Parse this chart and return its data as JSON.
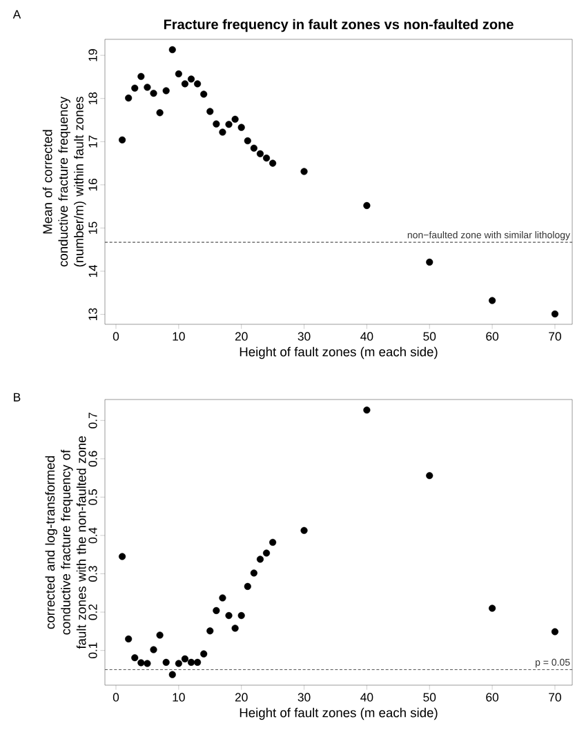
{
  "chart_data": [
    {
      "type": "scatter",
      "title": "Fracture frequency in fault zones vs non-faulted zone",
      "annotations": [
        "A"
      ],
      "xlabel": "Height of fault zones (m each side)",
      "ylabel": "Mean of corrected conductive fracture frequency (number/m) within fault zones",
      "x": [
        1,
        2,
        3,
        4,
        5,
        6,
        7,
        8,
        9,
        10,
        11,
        12,
        13,
        14,
        15,
        16,
        17,
        18,
        19,
        20,
        21,
        22,
        23,
        24,
        25,
        30,
        40,
        50,
        60,
        70
      ],
      "series": [
        {
          "color": "#000000",
          "values": [
            17.04,
            18.01,
            18.24,
            18.51,
            18.26,
            18.12,
            17.67,
            18.18,
            19.13,
            18.57,
            18.34,
            18.45,
            18.34,
            18.1,
            17.7,
            17.41,
            17.22,
            17.4,
            17.52,
            17.33,
            17.02,
            16.85,
            16.72,
            16.62,
            16.5,
            16.31,
            15.52,
            14.21,
            13.32,
            13.01
          ]
        }
      ],
      "marker": "circle",
      "xlim": [
        -1.76,
        72.76
      ],
      "ylim": [
        12.77,
        19.37
      ],
      "xticks": [
        0,
        10,
        20,
        30,
        40,
        50,
        60,
        70
      ],
      "yticks": [
        13,
        14,
        15,
        16,
        17,
        18,
        19
      ],
      "ref_lines": [
        {
          "axis": "y",
          "value": 14.67,
          "label": "non−faulted zone with similar lithology",
          "line_style": "dashed",
          "color": "#555555"
        }
      ]
    },
    {
      "type": "scatter",
      "annotations": [
        "B"
      ],
      "xlabel": "Height of fault zones (m each side)",
      "ylabel": "corrected and log-transformed conductive fracture frequency of fault zones with the non-faulted zone",
      "x": [
        1,
        2,
        3,
        4,
        5,
        6,
        7,
        8,
        9,
        10,
        11,
        12,
        13,
        14,
        15,
        16,
        17,
        18,
        19,
        20,
        21,
        22,
        23,
        24,
        25,
        30,
        40,
        50,
        60,
        70
      ],
      "series": [
        {
          "color": "#000000",
          "values": [
            0.345,
            0.13,
            0.081,
            0.068,
            0.066,
            0.102,
            0.14,
            0.069,
            0.037,
            0.066,
            0.078,
            0.069,
            0.069,
            0.091,
            0.151,
            0.204,
            0.237,
            0.191,
            0.158,
            0.191,
            0.267,
            0.302,
            0.338,
            0.354,
            0.382,
            0.413,
            0.727,
            0.556,
            0.21,
            0.149
          ]
        }
      ],
      "marker": "circle",
      "xlim": [
        -1.76,
        72.76
      ],
      "ylim": [
        0.0094,
        0.7546
      ],
      "xticks": [
        0,
        10,
        20,
        30,
        40,
        50,
        60,
        70
      ],
      "yticks": [
        0.1,
        0.2,
        0.3,
        0.4,
        0.5,
        0.6,
        0.7
      ],
      "ref_lines": [
        {
          "axis": "y",
          "value": 0.05,
          "label": "p = 0.05",
          "line_style": "dashed",
          "color": "#555555"
        }
      ]
    }
  ]
}
